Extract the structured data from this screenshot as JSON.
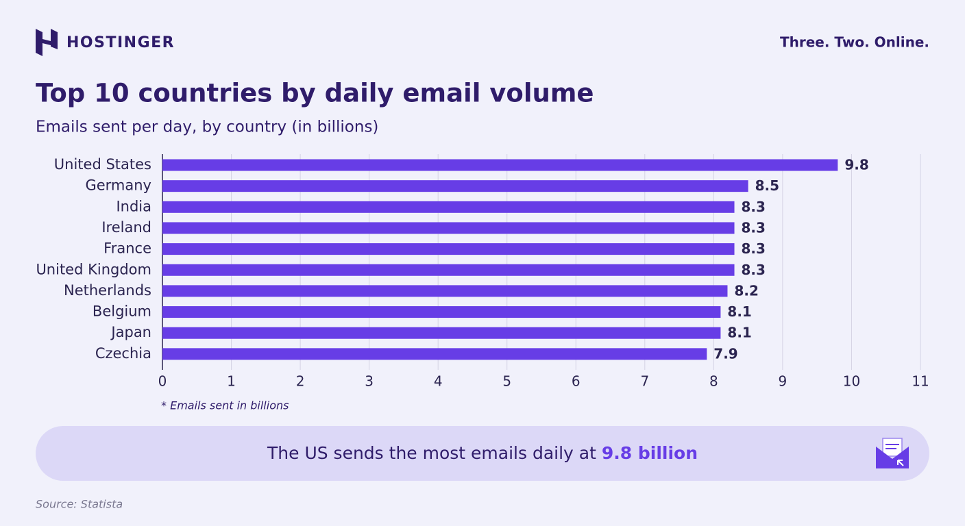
{
  "brand": "HOSTINGER",
  "tagline": "Three. Two. Online.",
  "chart_data": {
    "type": "bar",
    "orientation": "horizontal",
    "title": "Top 10 countries by daily email volume",
    "subtitle": "Emails sent per day, by country (in billions)",
    "categories": [
      "United States",
      "Germany",
      "India",
      "Ireland",
      "France",
      "United Kingdom",
      "Netherlands",
      "Belgium",
      "Japan",
      "Czechia"
    ],
    "values": [
      9.8,
      8.5,
      8.3,
      8.3,
      8.3,
      8.3,
      8.2,
      8.1,
      8.1,
      7.9
    ],
    "color": "#673de6",
    "xlim": [
      0,
      11
    ],
    "xticks": [
      0,
      1,
      2,
      3,
      4,
      5,
      6,
      7,
      8,
      9,
      10,
      11
    ],
    "grid": true,
    "note": "* Emails sent in billions"
  },
  "callout": {
    "text": "The US sends the most emails daily at ",
    "highlight": "9.8 billion"
  },
  "source": "Source: Statista"
}
